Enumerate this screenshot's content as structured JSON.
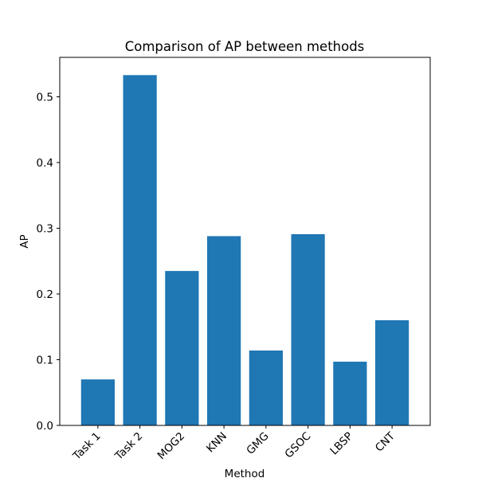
{
  "chart_data": {
    "type": "bar",
    "title": "Comparison of AP between methods",
    "xlabel": "Method",
    "ylabel": "AP",
    "categories": [
      "Task 1",
      "Task 2",
      "MOG2",
      "KNN",
      "GMG",
      "GSOC",
      "LBSP",
      "CNT"
    ],
    "values": [
      0.07,
      0.533,
      0.235,
      0.288,
      0.114,
      0.291,
      0.097,
      0.16
    ],
    "yticks": [
      0.0,
      0.1,
      0.2,
      0.3,
      0.4,
      0.5
    ],
    "ytick_labels": [
      "0.0",
      "0.1",
      "0.2",
      "0.3",
      "0.4",
      "0.5"
    ],
    "ylim": [
      0,
      0.56
    ],
    "grid": false,
    "bar_color": "#1f77b4",
    "xtick_rotation_deg": 45
  }
}
